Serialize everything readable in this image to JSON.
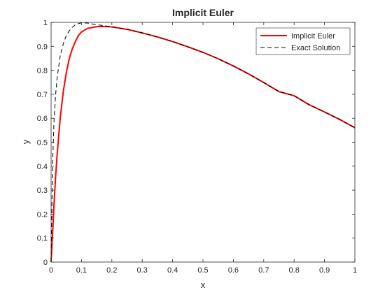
{
  "chart_data": {
    "type": "line",
    "title": "Implicit Euler",
    "xlabel": "x",
    "ylabel": "y",
    "xlim": [
      0,
      1
    ],
    "ylim": [
      0,
      1
    ],
    "xticks": [
      "0",
      "0.1",
      "0.2",
      "0.3",
      "0.4",
      "0.5",
      "0.6",
      "0.7",
      "0.8",
      "0.9",
      "1"
    ],
    "yticks": [
      "0",
      "0.1",
      "0.2",
      "0.3",
      "0.4",
      "0.5",
      "0.6",
      "0.7",
      "0.8",
      "0.9",
      "1"
    ],
    "grid": false,
    "legend_position": "top-right",
    "series": [
      {
        "name": "Implicit Euler",
        "color": "#ff0000",
        "style": "solid",
        "x": [
          0,
          0.005,
          0.01,
          0.015,
          0.02,
          0.03,
          0.04,
          0.05,
          0.06,
          0.07,
          0.08,
          0.09,
          0.1,
          0.12,
          0.15,
          0.18,
          0.2,
          0.25,
          0.3,
          0.35,
          0.4,
          0.45,
          0.5,
          0.55,
          0.6,
          0.65,
          0.7,
          0.75,
          0.8,
          0.85,
          0.9,
          0.95,
          1.0
        ],
        "y": [
          0,
          0.12,
          0.25,
          0.36,
          0.45,
          0.6,
          0.71,
          0.79,
          0.85,
          0.89,
          0.92,
          0.945,
          0.96,
          0.975,
          0.982,
          0.983,
          0.981,
          0.971,
          0.956,
          0.939,
          0.92,
          0.898,
          0.875,
          0.848,
          0.818,
          0.785,
          0.749,
          0.711,
          0.694,
          0.656,
          0.626,
          0.595,
          0.56
        ]
      },
      {
        "name": "Exact Solution",
        "color": "#000000",
        "style": "dashed",
        "x": [
          0,
          0.003,
          0.006,
          0.01,
          0.015,
          0.02,
          0.03,
          0.04,
          0.05,
          0.06,
          0.07,
          0.08,
          0.09,
          0.1,
          0.12,
          0.15,
          0.18,
          0.2,
          0.25,
          0.3,
          0.35,
          0.4,
          0.45,
          0.5,
          0.55,
          0.6,
          0.65,
          0.7,
          0.75,
          0.8,
          0.85,
          0.9,
          0.95,
          1.0
        ],
        "y": [
          0,
          0.26,
          0.45,
          0.6,
          0.7,
          0.77,
          0.86,
          0.91,
          0.945,
          0.965,
          0.98,
          0.99,
          0.995,
          0.998,
          0.997,
          0.99,
          0.985,
          0.981,
          0.971,
          0.956,
          0.939,
          0.92,
          0.898,
          0.875,
          0.848,
          0.818,
          0.785,
          0.749,
          0.711,
          0.694,
          0.656,
          0.626,
          0.595,
          0.56
        ]
      }
    ]
  }
}
